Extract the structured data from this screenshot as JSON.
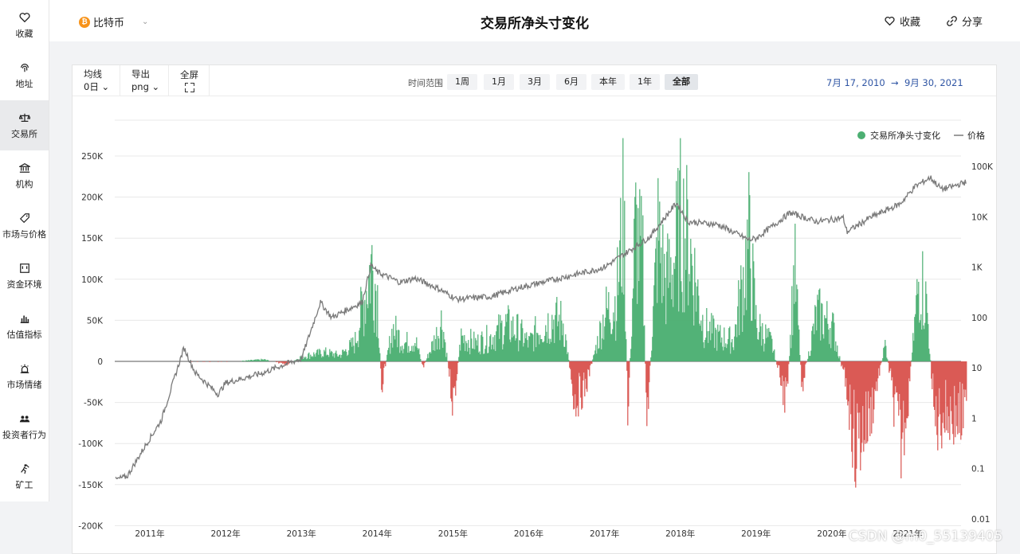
{
  "sidebar": {
    "items": [
      {
        "label": "收藏",
        "icon": "heart-icon"
      },
      {
        "label": "地址",
        "icon": "fingerprint-icon"
      },
      {
        "label": "交易所",
        "icon": "scale-icon"
      },
      {
        "label": "机构",
        "icon": "bank-icon"
      },
      {
        "label": "市场与价格",
        "icon": "tag-icon"
      },
      {
        "label": "资金环境",
        "icon": "frame-icon"
      },
      {
        "label": "估值指标",
        "icon": "bar-chart-icon"
      },
      {
        "label": "市场情绪",
        "icon": "alarm-icon"
      },
      {
        "label": "投资者行为",
        "icon": "users-icon"
      },
      {
        "label": "矿工",
        "icon": "miner-icon"
      }
    ],
    "active_index": 2
  },
  "header": {
    "coin_label": "比特币",
    "coin_icon_glyph": "₿",
    "title": "交易所净头寸变化",
    "fav_label": "收藏",
    "share_label": "分享"
  },
  "toolbar": {
    "ma_label": "均线",
    "ma_value": "0日",
    "export_label": "导出",
    "export_value": "png",
    "fullscreen_label": "全屏",
    "range_label": "时间范围",
    "ranges": [
      "1周",
      "1月",
      "3月",
      "6月",
      "本年",
      "1年",
      "全部"
    ],
    "active_range": "全部",
    "date_start": "7月 17, 2010",
    "date_arrow": "→",
    "date_end": "9月 30, 2021"
  },
  "chart_data": {
    "type": "bar",
    "legend": [
      "交易所净头寸变化",
      "价格"
    ],
    "legend_position": "top-right",
    "colors": {
      "positive": "#4caf72",
      "negative": "#d9534f",
      "price": "#7a7a7a"
    },
    "y_left_ticks": [
      "250K",
      "200K",
      "150K",
      "100K",
      "50K",
      "0",
      "-50K",
      "-100K",
      "-150K",
      "-200K"
    ],
    "y_left_range": [
      -200000,
      250000
    ],
    "y_right_ticks": [
      "100K",
      "10K",
      "1K",
      "100",
      "10",
      "1",
      "0.1",
      "0.01"
    ],
    "y_right_scale": "log",
    "y_right_range": [
      0.01,
      100000
    ],
    "x_ticks": [
      "2011年",
      "2012年",
      "2013年",
      "2014年",
      "2015年",
      "2016年",
      "2017年",
      "2018年",
      "2019年",
      "2020年",
      "2021年"
    ],
    "grid": true,
    "netflow_series": [
      [
        2010.55,
        0
      ],
      [
        2011.0,
        0
      ],
      [
        2011.5,
        -500
      ],
      [
        2012.0,
        -800
      ],
      [
        2012.5,
        3000
      ],
      [
        2012.8,
        -5000
      ],
      [
        2013.0,
        8000
      ],
      [
        2013.3,
        15000
      ],
      [
        2013.5,
        10000
      ],
      [
        2013.7,
        30000
      ],
      [
        2013.85,
        120000
      ],
      [
        2013.92,
        165000
      ],
      [
        2014.0,
        110000
      ],
      [
        2014.05,
        -40000
      ],
      [
        2014.2,
        55000
      ],
      [
        2014.35,
        30000
      ],
      [
        2014.5,
        35000
      ],
      [
        2014.6,
        -10000
      ],
      [
        2014.8,
        50000
      ],
      [
        2014.85,
        70000
      ],
      [
        2015.0,
        -70000
      ],
      [
        2015.1,
        40000
      ],
      [
        2015.3,
        30000
      ],
      [
        2015.5,
        40000
      ],
      [
        2015.7,
        60000
      ],
      [
        2015.85,
        50000
      ],
      [
        2016.0,
        30000
      ],
      [
        2016.1,
        50000
      ],
      [
        2016.3,
        70000
      ],
      [
        2016.45,
        65000
      ],
      [
        2016.6,
        -65000
      ],
      [
        2016.75,
        -40000
      ],
      [
        2017.0,
        80000
      ],
      [
        2017.15,
        100000
      ],
      [
        2017.25,
        250000
      ],
      [
        2017.3,
        -100000
      ],
      [
        2017.4,
        220000
      ],
      [
        2017.5,
        160000
      ],
      [
        2017.55,
        -105000
      ],
      [
        2017.7,
        210000
      ],
      [
        2017.8,
        130000
      ],
      [
        2017.9,
        160000
      ],
      [
        2018.0,
        235000
      ],
      [
        2018.1,
        200000
      ],
      [
        2018.3,
        60000
      ],
      [
        2018.5,
        40000
      ],
      [
        2018.7,
        35000
      ],
      [
        2018.9,
        200000
      ],
      [
        2019.0,
        60000
      ],
      [
        2019.2,
        30000
      ],
      [
        2019.4,
        -70000
      ],
      [
        2019.5,
        160000
      ],
      [
        2019.6,
        -40000
      ],
      [
        2019.8,
        80000
      ],
      [
        2020.0,
        60000
      ],
      [
        2020.2,
        -50000
      ],
      [
        2020.3,
        -140000
      ],
      [
        2020.5,
        -90000
      ],
      [
        2020.7,
        30000
      ],
      [
        2020.85,
        -100000
      ],
      [
        2020.9,
        -140000
      ],
      [
        2021.0,
        -60000
      ],
      [
        2021.15,
        147000
      ],
      [
        2021.25,
        90000
      ],
      [
        2021.35,
        -100000
      ],
      [
        2021.5,
        -85000
      ],
      [
        2021.7,
        -95000
      ]
    ],
    "price_series": [
      [
        2010.55,
        0.06
      ],
      [
        2010.7,
        0.07
      ],
      [
        2010.95,
        0.3
      ],
      [
        2011.15,
        0.9
      ],
      [
        2011.45,
        25
      ],
      [
        2011.6,
        8
      ],
      [
        2011.9,
        3
      ],
      [
        2012.0,
        5
      ],
      [
        2012.5,
        8
      ],
      [
        2012.8,
        12
      ],
      [
        2013.0,
        15
      ],
      [
        2013.25,
        200
      ],
      [
        2013.4,
        100
      ],
      [
        2013.8,
        200
      ],
      [
        2013.92,
        1100
      ],
      [
        2014.0,
        800
      ],
      [
        2014.3,
        500
      ],
      [
        2014.5,
        600
      ],
      [
        2014.8,
        380
      ],
      [
        2015.05,
        230
      ],
      [
        2015.5,
        260
      ],
      [
        2015.9,
        400
      ],
      [
        2016.0,
        430
      ],
      [
        2016.5,
        650
      ],
      [
        2016.9,
        900
      ],
      [
        2017.0,
        1000
      ],
      [
        2017.4,
        2500
      ],
      [
        2017.6,
        4000
      ],
      [
        2017.95,
        19000
      ],
      [
        2018.1,
        8000
      ],
      [
        2018.5,
        7000
      ],
      [
        2018.9,
        3500
      ],
      [
        2019.0,
        3700
      ],
      [
        2019.45,
        12000
      ],
      [
        2019.8,
        8000
      ],
      [
        2020.15,
        9500
      ],
      [
        2020.2,
        5000
      ],
      [
        2020.5,
        9500
      ],
      [
        2020.9,
        18000
      ],
      [
        2021.1,
        40000
      ],
      [
        2021.3,
        60000
      ],
      [
        2021.45,
        35000
      ],
      [
        2021.6,
        40000
      ],
      [
        2021.75,
        48000
      ]
    ]
  },
  "watermark": "CSDN @m0_55139405"
}
